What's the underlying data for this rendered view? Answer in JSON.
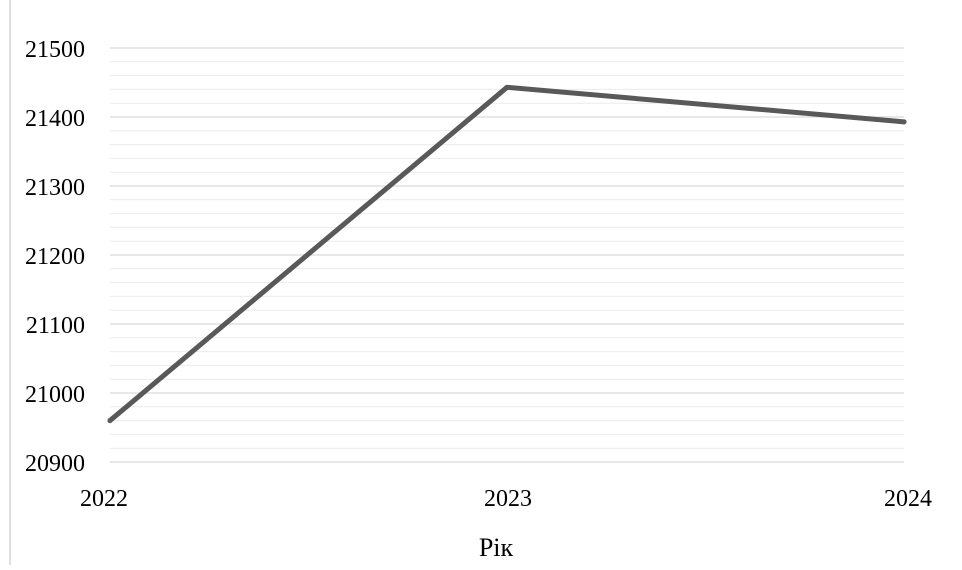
{
  "chart_data": {
    "type": "line",
    "title": "",
    "xlabel": "Рік",
    "ylabel": "",
    "categories": [
      "2022",
      "2023",
      "2024"
    ],
    "series": [
      {
        "values": [
          20960,
          21443,
          21393
        ]
      }
    ],
    "ylim": [
      20900,
      21500
    ],
    "yticks": [
      "20900",
      "21000",
      "21100",
      "21200",
      "21300",
      "21400",
      "21500"
    ],
    "grid": true,
    "minor_grid": true,
    "legend": "none",
    "colors": {
      "line": "#595959",
      "major_grid": "#d9d9d9",
      "minor_grid": "#ececec",
      "axis": "#bfbfbf"
    }
  }
}
